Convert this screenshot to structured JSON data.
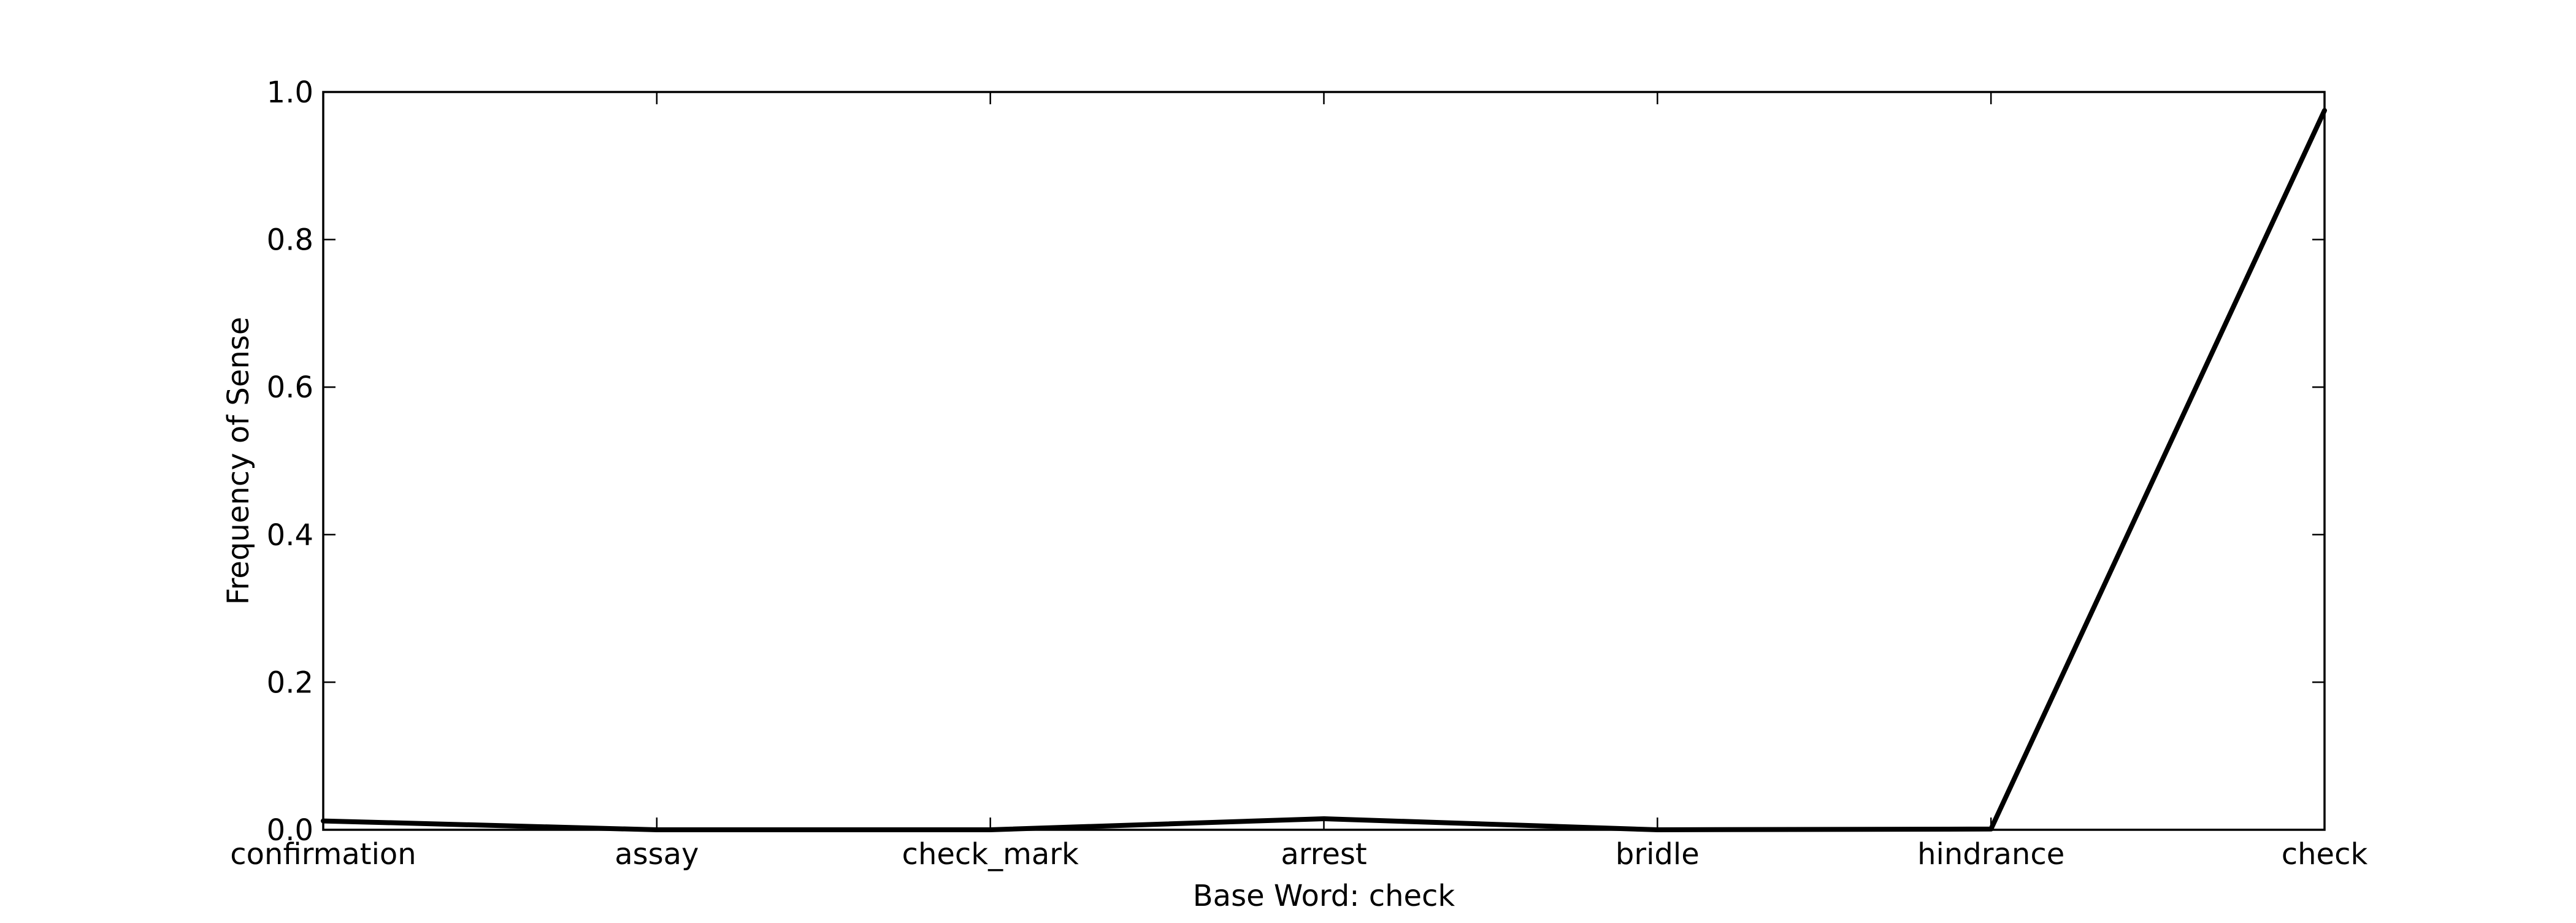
{
  "chart_data": {
    "type": "line",
    "title": "",
    "xlabel": "Base Word: check",
    "ylabel": "Frequency of Sense",
    "categories": [
      "confirmation",
      "assay",
      "check_mark",
      "arrest",
      "bridle",
      "hindrance",
      "check"
    ],
    "values": [
      0.012,
      0.0,
      0.0,
      0.015,
      0.0,
      0.001,
      0.975
    ],
    "ylim": [
      0.0,
      1.0
    ],
    "yticks": [
      "0.0",
      "0.2",
      "0.4",
      "0.6",
      "0.8",
      "1.0"
    ],
    "grid": false,
    "line_color": "#000000"
  }
}
